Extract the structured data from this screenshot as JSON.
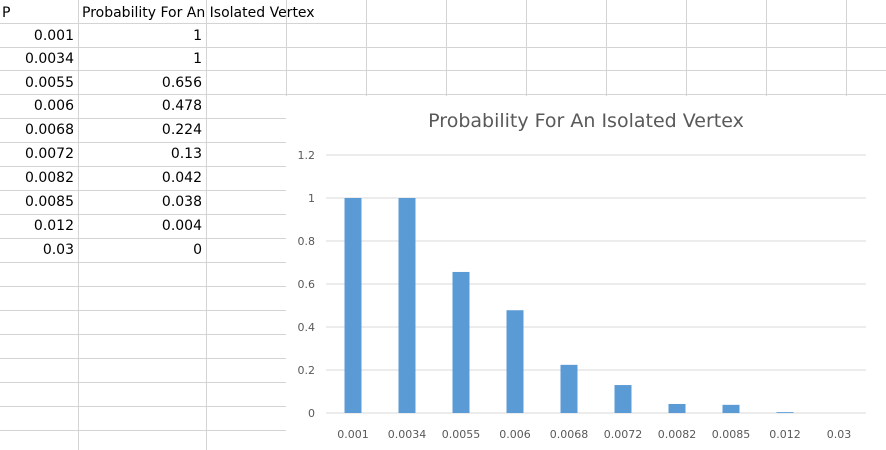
{
  "sheet": {
    "header_p": "P",
    "header_prob": "Probability For An Isolated Vertex",
    "rows": [
      {
        "p": "0.001",
        "prob": "1"
      },
      {
        "p": "0.0034",
        "prob": "1"
      },
      {
        "p": "0.0055",
        "prob": "0.656"
      },
      {
        "p": "0.006",
        "prob": "0.478"
      },
      {
        "p": "0.0068",
        "prob": "0.224"
      },
      {
        "p": "0.0072",
        "prob": "0.13"
      },
      {
        "p": "0.0082",
        "prob": "0.042"
      },
      {
        "p": "0.0085",
        "prob": "0.038"
      },
      {
        "p": "0.012",
        "prob": "0.004"
      },
      {
        "p": "0.03",
        "prob": "0"
      }
    ]
  },
  "chart_data": {
    "type": "bar",
    "title": "Probability For An Isolated Vertex",
    "categories": [
      "0.001",
      "0.0034",
      "0.0055",
      "0.006",
      "0.0068",
      "0.0072",
      "0.0082",
      "0.0085",
      "0.012",
      "0.03"
    ],
    "values": [
      1,
      1,
      0.656,
      0.478,
      0.224,
      0.13,
      0.042,
      0.038,
      0.004,
      0
    ],
    "yticks": [
      "0",
      "0.2",
      "0.4",
      "0.6",
      "0.8",
      "1",
      "1.2"
    ],
    "ylim": [
      0,
      1.2
    ],
    "grid": true,
    "legend": "none",
    "bar_color": "#5b9bd5"
  }
}
